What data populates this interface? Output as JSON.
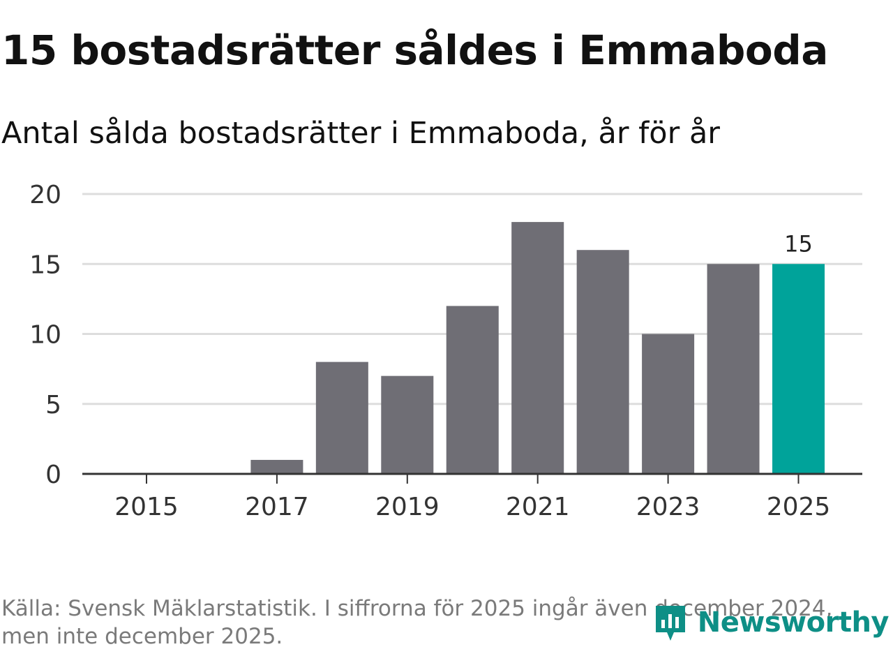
{
  "header": {
    "title": "15 bostadsrätter såldes i Emmaboda",
    "subtitle": "Antal sålda bostadsrätter i Emmaboda, år för år"
  },
  "chart_data": {
    "type": "bar",
    "title": "15 bostadsrätter såldes i Emmaboda",
    "subtitle": "Antal sålda bostadsrätter i Emmaboda, år för år",
    "categories": [
      "2015",
      "2016",
      "2017",
      "2018",
      "2019",
      "2020",
      "2021",
      "2022",
      "2023",
      "2024",
      "2025"
    ],
    "values": [
      0,
      0,
      1,
      8,
      7,
      12,
      18,
      16,
      10,
      15,
      15
    ],
    "x_tick_labels": [
      "2015",
      "2017",
      "2019",
      "2021",
      "2023",
      "2025"
    ],
    "y_ticks": [
      0,
      5,
      10,
      15,
      20
    ],
    "ylim": [
      0,
      20
    ],
    "xlabel": "",
    "ylabel": "",
    "grid": true,
    "highlight_index": 10,
    "data_label": "15",
    "colors": {
      "bar": "#6f6e75",
      "highlight": "#00a39a",
      "grid": "#dddddd",
      "axis": "#333333"
    }
  },
  "footer": {
    "source_line1": "Källa: Svensk Mäklarstatistik. I siffrorna för 2025 ingår även december 2024,",
    "source_line2": "men inte december 2025.",
    "brand": "Newsworthy",
    "brand_icon": "newsworthy-logo-icon",
    "brand_color": "#0e8f86"
  }
}
